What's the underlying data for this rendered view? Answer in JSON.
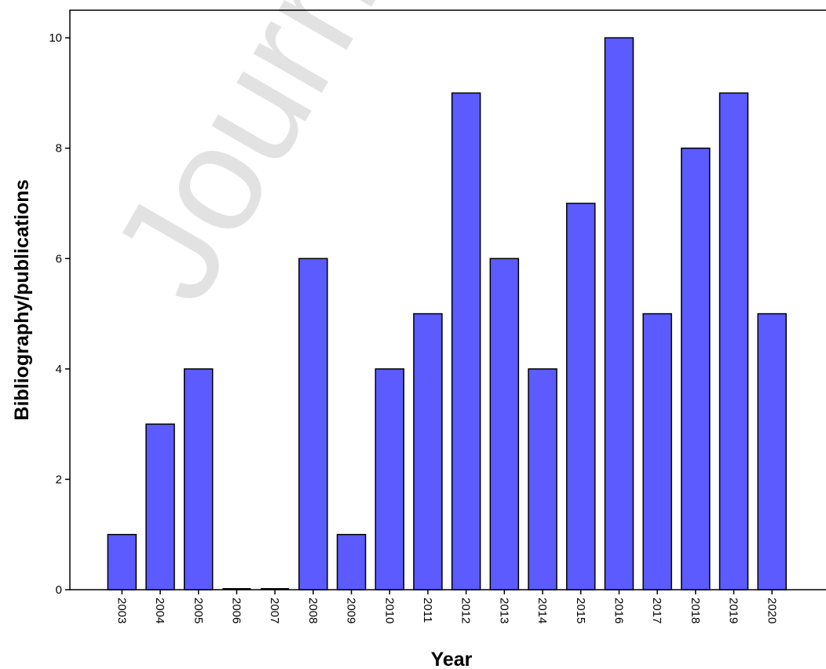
{
  "watermark": "Journal Pre-proof",
  "chart_data": {
    "type": "bar",
    "title": "",
    "xlabel": "Year",
    "ylabel": "Bibliography/publications",
    "categories": [
      "2003",
      "2004",
      "2005",
      "2006",
      "2007",
      "2008",
      "2009",
      "2010",
      "2011",
      "2012",
      "2013",
      "2014",
      "2015",
      "2016",
      "2017",
      "2018",
      "2019",
      "2020"
    ],
    "values": [
      1,
      3,
      4,
      0,
      0,
      6,
      1,
      4,
      5,
      9,
      6,
      4,
      7,
      10,
      5,
      8,
      9,
      5
    ],
    "ylim": [
      0,
      10.5
    ],
    "yticks": [
      0,
      2,
      4,
      6,
      8,
      10
    ],
    "bar_color": "#5b5bff",
    "bar_edge_color": "#000000",
    "grid": false,
    "legend": "none"
  }
}
